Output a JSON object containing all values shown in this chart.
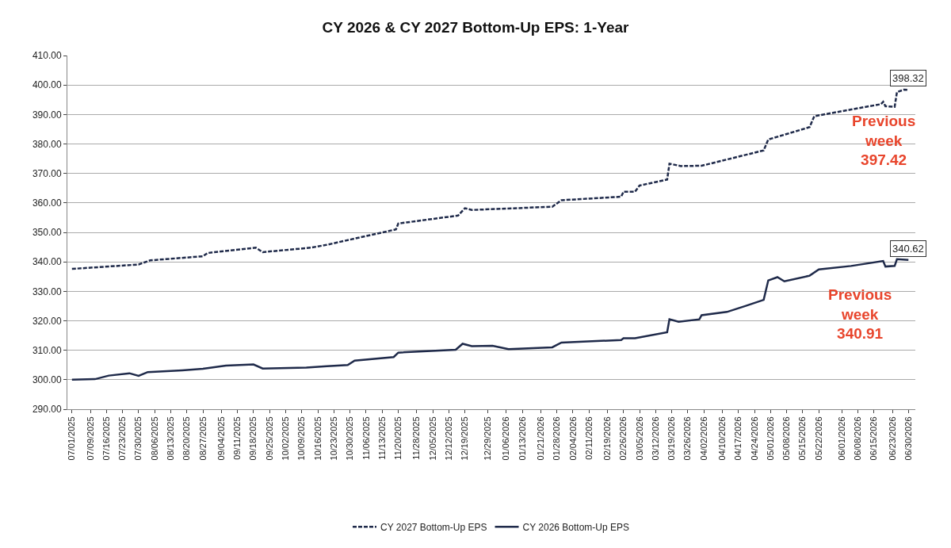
{
  "chart_data": {
    "type": "line",
    "title": "CY 2026 & CY 2027 Bottom-Up EPS: 1-Year",
    "xlim": [
      "2025-06-29",
      "2026-07-03"
    ],
    "xticks": [
      {
        "value": "2025-07-01",
        "label": "07/01/2025"
      },
      {
        "value": "2025-07-09",
        "label": "07/09/2025"
      },
      {
        "value": "2025-07-16",
        "label": "07/16/2025"
      },
      {
        "value": "2025-07-23",
        "label": "07/23/2025"
      },
      {
        "value": "2025-07-30",
        "label": "07/30/2025"
      },
      {
        "value": "2025-08-06",
        "label": "08/06/2025"
      },
      {
        "value": "2025-08-13",
        "label": "08/13/2025"
      },
      {
        "value": "2025-08-20",
        "label": "08/20/2025"
      },
      {
        "value": "2025-08-27",
        "label": "08/27/2025"
      },
      {
        "value": "2025-09-04",
        "label": "09/04/2025"
      },
      {
        "value": "2025-09-11",
        "label": "09/11/2025"
      },
      {
        "value": "2025-09-18",
        "label": "09/18/2025"
      },
      {
        "value": "2025-09-25",
        "label": "09/25/2025"
      },
      {
        "value": "2025-10-02",
        "label": "10/02/2025"
      },
      {
        "value": "2025-10-09",
        "label": "10/09/2025"
      },
      {
        "value": "2025-10-16",
        "label": "10/16/2025"
      },
      {
        "value": "2025-10-23",
        "label": "10/23/2025"
      },
      {
        "value": "2025-10-30",
        "label": "10/30/2025"
      },
      {
        "value": "2025-11-06",
        "label": "11/06/2025"
      },
      {
        "value": "2025-11-13",
        "label": "11/13/2025"
      },
      {
        "value": "2025-11-20",
        "label": "11/20/2025"
      },
      {
        "value": "2025-11-28",
        "label": "11/28/2025"
      },
      {
        "value": "2025-12-05",
        "label": "12/05/2025"
      },
      {
        "value": "2025-12-12",
        "label": "12/12/2025"
      },
      {
        "value": "2025-12-19",
        "label": "12/19/2025"
      },
      {
        "value": "2025-12-29",
        "label": "12/29/2025"
      },
      {
        "value": "2026-01-06",
        "label": "01/06/2026"
      },
      {
        "value": "2026-01-13",
        "label": "01/13/2026"
      },
      {
        "value": "2026-01-21",
        "label": "01/21/2026"
      },
      {
        "value": "2026-01-28",
        "label": "01/28/2026"
      },
      {
        "value": "2026-02-04",
        "label": "02/04/2026"
      },
      {
        "value": "2026-02-11",
        "label": "02/11/2026"
      },
      {
        "value": "2026-02-19",
        "label": "02/19/2026"
      },
      {
        "value": "2026-02-26",
        "label": "02/26/2026"
      },
      {
        "value": "2026-03-05",
        "label": "03/05/2026"
      },
      {
        "value": "2026-03-12",
        "label": "03/12/2026"
      },
      {
        "value": "2026-03-19",
        "label": "03/19/2026"
      },
      {
        "value": "2026-03-26",
        "label": "03/26/2026"
      },
      {
        "value": "2026-04-02",
        "label": "04/02/2026"
      },
      {
        "value": "2026-04-10",
        "label": "04/10/2026"
      },
      {
        "value": "2026-04-17",
        "label": "04/17/2026"
      },
      {
        "value": "2026-04-24",
        "label": "04/24/2026"
      },
      {
        "value": "2026-05-01",
        "label": "05/01/2026"
      },
      {
        "value": "2026-05-08",
        "label": "05/08/2026"
      },
      {
        "value": "2026-05-15",
        "label": "05/15/2026"
      },
      {
        "value": "2026-05-22",
        "label": "05/22/2026"
      },
      {
        "value": "2026-06-01",
        "label": "06/01/2026"
      },
      {
        "value": "2026-06-08",
        "label": "06/08/2026"
      },
      {
        "value": "2026-06-15",
        "label": "06/15/2026"
      },
      {
        "value": "2026-06-23",
        "label": "06/23/2026"
      },
      {
        "value": "2026-06-30",
        "label": "06/30/2026"
      }
    ],
    "ylim": [
      290,
      410
    ],
    "yticks": [
      {
        "value": 290,
        "label": "290.00"
      },
      {
        "value": 300,
        "label": "300.00"
      },
      {
        "value": 310,
        "label": "310.00"
      },
      {
        "value": 320,
        "label": "320.00"
      },
      {
        "value": 330,
        "label": "330.00"
      },
      {
        "value": 340,
        "label": "340.00"
      },
      {
        "value": 350,
        "label": "350.00"
      },
      {
        "value": 360,
        "label": "360.00"
      },
      {
        "value": 370,
        "label": "370.00"
      },
      {
        "value": 380,
        "label": "380.00"
      },
      {
        "value": 390,
        "label": "390.00"
      },
      {
        "value": 400,
        "label": "400.00"
      },
      {
        "value": 410,
        "label": "410.00"
      }
    ],
    "grid": "y",
    "legend": "bottom",
    "series": [
      {
        "name": "CY 2027 Bottom-Up EPS",
        "color": "#1f2a4a",
        "line_style": "dashed",
        "x": [
          "2025-07-01",
          "2025-07-30",
          "2025-08-04",
          "2025-08-27",
          "2025-08-29",
          "2025-09-19",
          "2025-09-22",
          "2025-10-13",
          "2025-10-20",
          "2025-11-19",
          "2025-11-20",
          "2025-12-16",
          "2025-12-19",
          "2025-12-22",
          "2026-01-26",
          "2026-01-30",
          "2026-02-25",
          "2026-02-26",
          "2026-03-03",
          "2026-03-05",
          "2026-03-17",
          "2026-03-18",
          "2026-03-23",
          "2026-04-01",
          "2026-04-28",
          "2026-04-30",
          "2026-05-18",
          "2026-05-20",
          "2026-06-18",
          "2026-06-19",
          "2026-06-20",
          "2026-06-24",
          "2026-06-25",
          "2026-06-28",
          "2026-06-30"
        ],
        "values": [
          337.6,
          339.1,
          340.5,
          341.9,
          343.0,
          344.8,
          343.3,
          344.8,
          345.8,
          351.0,
          353.0,
          355.7,
          358.2,
          357.6,
          358.7,
          360.9,
          362.1,
          363.8,
          363.8,
          365.9,
          367.9,
          373.3,
          372.5,
          372.6,
          377.8,
          381.5,
          385.7,
          389.4,
          393.5,
          394.3,
          392.8,
          392.6,
          397.6,
          398.4,
          398.32
        ]
      },
      {
        "name": "CY 2026 Bottom-Up EPS",
        "color": "#1f2a4a",
        "line_style": "solid",
        "x": [
          "2025-07-01",
          "2025-07-11",
          "2025-07-17",
          "2025-07-26",
          "2025-07-30",
          "2025-08-03",
          "2025-08-18",
          "2025-08-27",
          "2025-09-06",
          "2025-09-18",
          "2025-09-22",
          "2025-10-11",
          "2025-10-20",
          "2025-10-29",
          "2025-11-01",
          "2025-11-18",
          "2025-11-20",
          "2025-12-15",
          "2025-12-18",
          "2025-12-22",
          "2025-12-31",
          "2026-01-07",
          "2026-01-26",
          "2026-01-30",
          "2026-02-25",
          "2026-02-26",
          "2026-03-03",
          "2026-03-17",
          "2026-03-18",
          "2026-03-22",
          "2026-03-31",
          "2026-04-01",
          "2026-04-12",
          "2026-04-20",
          "2026-04-28",
          "2026-04-30",
          "2026-05-04",
          "2026-05-07",
          "2026-05-18",
          "2026-05-22",
          "2026-06-05",
          "2026-06-19",
          "2026-06-20",
          "2026-06-24",
          "2026-06-25",
          "2026-06-30"
        ],
        "values": [
          300.0,
          300.2,
          301.4,
          302.2,
          301.3,
          302.6,
          303.2,
          303.7,
          304.8,
          305.2,
          303.8,
          304.1,
          304.6,
          305.0,
          306.5,
          307.7,
          309.2,
          310.2,
          312.2,
          311.4,
          311.5,
          310.4,
          311.0,
          312.6,
          313.5,
          314.1,
          314.1,
          316.1,
          320.5,
          319.7,
          320.5,
          321.9,
          323.0,
          325.0,
          327.1,
          333.7,
          334.8,
          333.4,
          335.3,
          337.4,
          338.6,
          340.3,
          338.4,
          338.6,
          340.9,
          340.62
        ]
      }
    ],
    "annotations": [
      {
        "text": "398.32",
        "x": "2026-06-30",
        "y": 398.32
      },
      {
        "text": "340.62",
        "x": "2026-06-30",
        "y": 340.62
      },
      "Previous week 397.42",
      "Previous week 340.91"
    ]
  }
}
